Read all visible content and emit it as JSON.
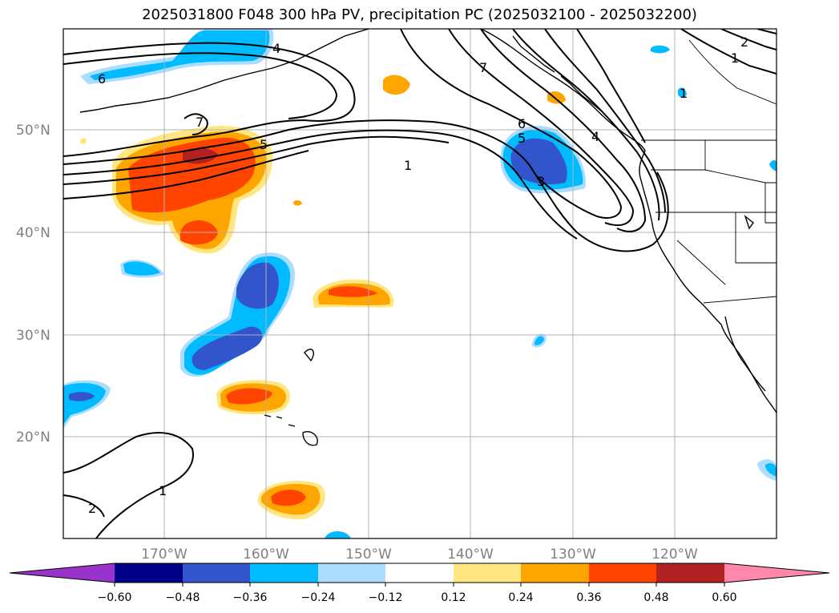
{
  "title": "2025031800 F048 300 hPa PV, precipitation PC (2025032100 - 2025032200)",
  "lat_labels": [
    "50°N",
    "40°N",
    "30°N",
    "20°N"
  ],
  "lon_labels": [
    "170°W",
    "160°W",
    "150°W",
    "140°W",
    "130°W",
    "120°W"
  ],
  "contour_labels": [
    "6",
    "7",
    "5",
    "1",
    "7",
    "6",
    "5",
    "4",
    "3",
    "1",
    "2",
    "1",
    "2",
    "1",
    "4"
  ],
  "colorbar": {
    "ticks": [
      "−0.60",
      "−0.48",
      "−0.36",
      "−0.24",
      "−0.12",
      "0.12",
      "0.24",
      "0.36",
      "0.48",
      "0.60"
    ],
    "colors": [
      "#9933cc",
      "#000088",
      "#3355cc",
      "#00bbff",
      "#aaddff",
      "#ffffff",
      "#ffe680",
      "#ffa500",
      "#ff4400",
      "#b22222",
      "#ff88aa"
    ]
  }
}
